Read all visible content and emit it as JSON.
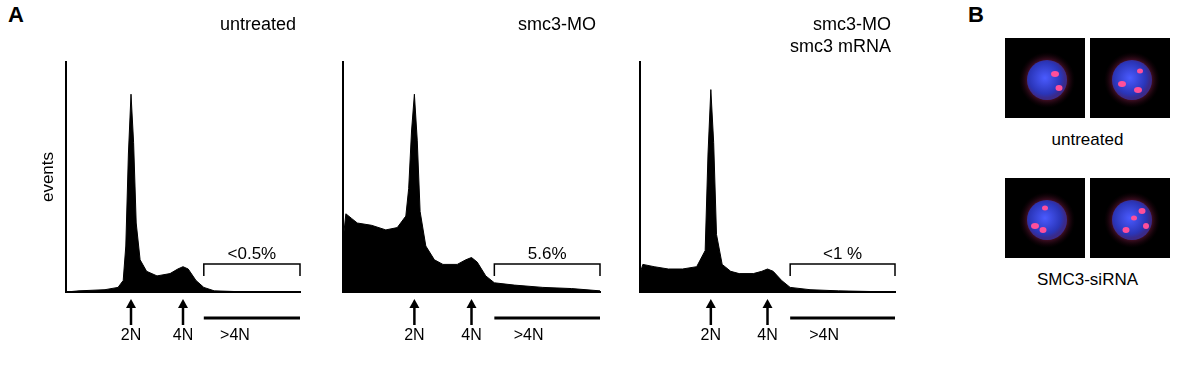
{
  "chart_data": [
    {
      "type": "area",
      "title": [
        "untreated"
      ],
      "ylabel": "events",
      "x": [
        -0.5,
        0,
        1,
        1.5,
        1.7,
        1.8,
        1.9,
        2.0,
        2.1,
        2.2,
        2.35,
        2.6,
        3,
        3.5,
        3.8,
        4.0,
        4.2,
        4.5,
        4.8,
        5.2,
        6,
        8.5
      ],
      "values": [
        0,
        0.5,
        1,
        2,
        5,
        20,
        60,
        86,
        65,
        30,
        14,
        9,
        7,
        8,
        10,
        11,
        10,
        5,
        2,
        0.5,
        0.2,
        0
      ],
      "color": "#000000",
      "xlim": [
        -0.5,
        8.5
      ],
      "ylim": [
        0,
        100
      ],
      "xticks": [
        {
          "value": 2,
          "label": "2N"
        },
        {
          "value": 4,
          "label": "4N"
        },
        {
          "value": 6,
          "label": ">4N"
        }
      ],
      "tick_labels": "x",
      "grid": false,
      "gate": {
        "range": [
          4.8,
          8.5
        ],
        "label": "<0.5%"
      }
    },
    {
      "type": "area",
      "title": [
        "smc3-MO"
      ],
      "x": [
        -0.5,
        -0.4,
        -0.2,
        0,
        0.5,
        1,
        1.4,
        1.7,
        1.8,
        1.9,
        2.0,
        2.1,
        2.2,
        2.4,
        2.7,
        3,
        3.5,
        3.8,
        4.0,
        4.2,
        4.5,
        4.8,
        5.5,
        6.5,
        7.5,
        8.5
      ],
      "values": [
        22,
        34,
        32,
        30,
        29,
        27,
        28,
        33,
        45,
        70,
        86,
        66,
        35,
        20,
        14,
        12,
        12,
        14,
        15,
        13,
        7,
        4,
        3,
        2,
        1.5,
        0.5
      ],
      "color": "#000000",
      "xlim": [
        -0.5,
        8.5
      ],
      "ylim": [
        0,
        100
      ],
      "xticks": [
        {
          "value": 2,
          "label": "2N"
        },
        {
          "value": 4,
          "label": "4N"
        },
        {
          "value": 6,
          "label": ">4N"
        }
      ],
      "tick_labels": "x",
      "grid": false,
      "gate": {
        "range": [
          4.8,
          8.5
        ],
        "label": "5.6%"
      }
    },
    {
      "type": "area",
      "title": [
        "smc3-MO",
        "smc3 mRNA"
      ],
      "x": [
        -0.5,
        -0.4,
        0,
        0.5,
        1,
        1.5,
        1.8,
        1.9,
        2.0,
        2.1,
        2.2,
        2.4,
        2.7,
        3,
        3.5,
        3.8,
        4,
        4.2,
        4.5,
        4.8,
        5.5,
        6.5,
        8.5
      ],
      "values": [
        8,
        12,
        11,
        10,
        10,
        11,
        18,
        60,
        88,
        65,
        25,
        12,
        9,
        8,
        8,
        9,
        10,
        9,
        5,
        2,
        1,
        0.5,
        0
      ],
      "color": "#000000",
      "xlim": [
        -0.5,
        8.5
      ],
      "ylim": [
        0,
        100
      ],
      "xticks": [
        {
          "value": 2,
          "label": "2N"
        },
        {
          "value": 4,
          "label": "4N"
        },
        {
          "value": 6,
          "label": ">4N"
        }
      ],
      "tick_labels": "x",
      "grid": false,
      "gate": {
        "range": [
          4.8,
          8.5
        ],
        "label": "<1 %"
      }
    }
  ],
  "panel_labels": [
    "A",
    "B"
  ],
  "images": [
    {
      "caption": "untreated",
      "count": 2
    },
    {
      "caption": "SMC3-siRNA",
      "count": 2
    }
  ]
}
